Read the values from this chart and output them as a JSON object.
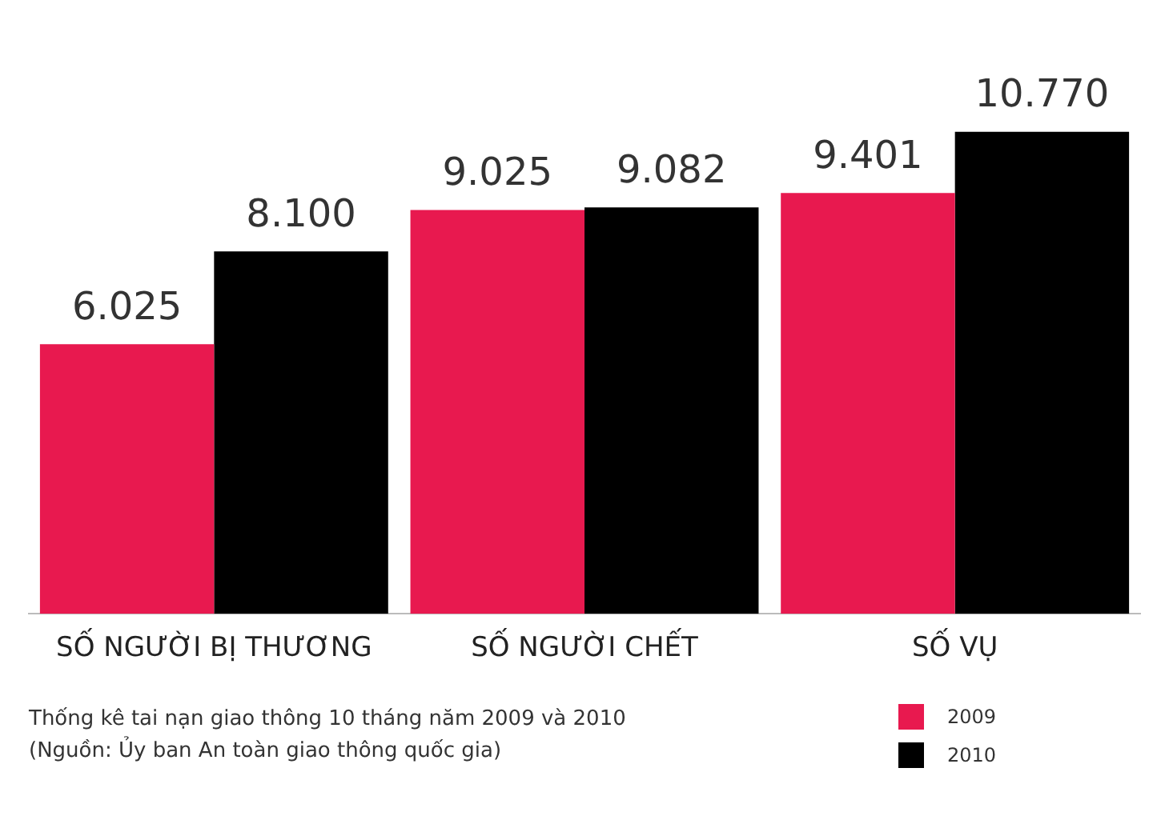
{
  "chart_data": {
    "type": "bar",
    "categories": [
      "SỐ NGƯỜI BỊ THƯƠNG",
      "SỐ NGƯỜI CHẾT",
      "SỐ VỤ"
    ],
    "series": [
      {
        "name": "2009",
        "color": "#e8194f",
        "values": [
          6025,
          9025,
          9401
        ],
        "value_labels": [
          "6.025",
          "9.025",
          "9.401"
        ]
      },
      {
        "name": "2010",
        "color": "#000000",
        "values": [
          8100,
          9082,
          10770
        ],
        "value_labels": [
          "8.100",
          "9.082",
          "10.770"
        ]
      }
    ],
    "legend": "bottom right",
    "grid": false,
    "annotations": [
      "Thống kê tai nạn giao thông 10 tháng năm 2009 và 2010",
      "(Nguồn: Ủy ban An toàn giao thông quốc gia)"
    ]
  }
}
